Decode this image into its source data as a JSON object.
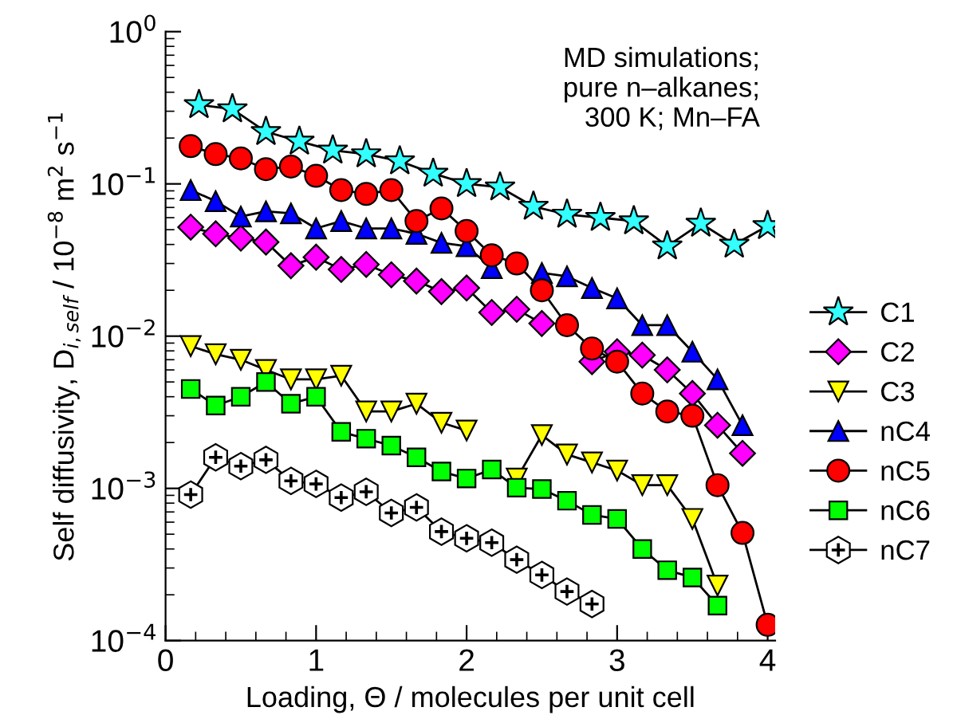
{
  "chart_data": {
    "type": "line",
    "xlabel": "Loading, Θ / molecules per unit cell",
    "ylabel": "Self diffusivity, D$_{i,self}$ / 10$^{−8}$ m$^{2}$ s$^{−1}$",
    "annotations": [
      "MD simulations;\npure n–alkanes;\n300 K; Mn–FA"
    ],
    "log": "y",
    "grid": false,
    "legend": "right",
    "xlim": [
      0,
      4.05
    ],
    "xticks": [
      0,
      1,
      2,
      3,
      4
    ],
    "ylim": [
      0.0001,
      1
    ],
    "yticks": [
      {
        "value": 0.0001,
        "label": "10$^{−4}$"
      },
      {
        "value": 0.001,
        "label": "10$^{−3}$"
      },
      {
        "value": 0.01,
        "label": "10$^{−2}$"
      },
      {
        "value": 0.1,
        "label": "10$^{−1}$"
      },
      {
        "value": 1,
        "label": "10$^{0}$"
      }
    ],
    "series": [
      {
        "name": "C1",
        "color": "#33ffff",
        "marker": "star",
        "x": [
          0.222,
          0.444,
          0.667,
          0.889,
          1.111,
          1.333,
          1.556,
          1.778,
          2.0,
          2.222,
          2.444,
          2.667,
          2.889,
          3.111,
          3.333,
          3.556,
          3.778,
          4.0
        ],
        "values": [
          0.33,
          0.31,
          0.22,
          0.19,
          0.166,
          0.157,
          0.141,
          0.117,
          0.1,
          0.095,
          0.071,
          0.063,
          0.06,
          0.057,
          0.039,
          0.055,
          0.04,
          0.053
        ]
      },
      {
        "name": "C2",
        "color": "#ff00ff",
        "marker": "diamond",
        "x": [
          0.167,
          0.333,
          0.5,
          0.667,
          0.833,
          1.0,
          1.167,
          1.333,
          1.5,
          1.667,
          1.833,
          2.0,
          2.167,
          2.333,
          2.5,
          2.667,
          2.833,
          3.0,
          3.167,
          3.333,
          3.5,
          3.667,
          3.833
        ],
        "values": [
          0.052,
          0.047,
          0.044,
          0.0415,
          0.029,
          0.033,
          0.0274,
          0.0296,
          0.0253,
          0.023,
          0.0196,
          0.0207,
          0.0143,
          0.015,
          0.0121,
          null,
          0.0068,
          0.0079,
          0.0075,
          0.006,
          0.0042,
          0.0026,
          0.0017
        ]
      },
      {
        "name": "C3",
        "color": "#ffff00",
        "marker": "triangle_down",
        "x": [
          0.167,
          0.333,
          0.5,
          0.667,
          0.833,
          1.0,
          1.167,
          1.333,
          1.5,
          1.667,
          1.833,
          2.0,
          2.167,
          2.333,
          2.5,
          2.667,
          2.833,
          3.0,
          3.167,
          3.333,
          3.5,
          3.667
        ],
        "values": [
          0.0086,
          0.0076,
          0.007,
          0.006,
          0.0052,
          0.0052,
          0.0055,
          0.0032,
          0.0032,
          0.0036,
          0.0027,
          0.0024,
          null,
          0.00116,
          0.00224,
          0.00167,
          0.00148,
          0.00131,
          0.00105,
          0.00105,
          0.00063,
          0.00023
        ]
      },
      {
        "name": "nC4",
        "color": "#0000ff",
        "marker": "triangle",
        "x": [
          0.167,
          0.333,
          0.5,
          0.667,
          0.833,
          1.0,
          1.167,
          1.333,
          1.5,
          1.667,
          1.833,
          2.0,
          2.167,
          2.333,
          2.5,
          2.667,
          2.833,
          3.0,
          3.167,
          3.333,
          3.5,
          3.667,
          3.833
        ],
        "values": [
          0.091,
          0.077,
          0.061,
          0.066,
          0.064,
          0.051,
          0.057,
          0.051,
          0.051,
          0.047,
          0.041,
          0.039,
          0.028,
          null,
          0.026,
          0.0247,
          0.0207,
          0.0177,
          0.0118,
          0.0118,
          0.0079,
          0.0052,
          0.0026
        ]
      },
      {
        "name": "nC5",
        "color": "#ff0000",
        "marker": "circle",
        "x": [
          0.167,
          0.333,
          0.5,
          0.667,
          0.833,
          1.0,
          1.167,
          1.333,
          1.5,
          1.667,
          1.833,
          2.0,
          2.167,
          2.333,
          2.5,
          2.667,
          2.833,
          3.0,
          3.167,
          3.333,
          3.5,
          3.667,
          3.833,
          4.0
        ],
        "values": [
          0.177,
          0.157,
          0.147,
          0.125,
          0.13,
          0.113,
          0.091,
          0.086,
          0.091,
          0.057,
          0.069,
          0.049,
          0.034,
          0.03,
          0.02,
          0.0118,
          0.0083,
          0.0068,
          0.0042,
          0.0032,
          0.003,
          0.00105,
          0.00051,
          0.000127
        ]
      },
      {
        "name": "nC6",
        "color": "#00ff00",
        "marker": "square",
        "x": [
          0.167,
          0.333,
          0.5,
          0.667,
          0.833,
          1.0,
          1.167,
          1.333,
          1.5,
          1.667,
          1.833,
          2.0,
          2.167,
          2.333,
          2.5,
          2.667,
          2.833,
          3.0,
          3.167,
          3.333,
          3.5,
          3.667
        ],
        "values": [
          0.0045,
          0.0035,
          0.004,
          0.005,
          0.0036,
          0.004,
          0.00235,
          0.00212,
          0.00191,
          0.0016,
          0.00129,
          0.00116,
          0.00133,
          0.00101,
          0.00099,
          0.00083,
          0.00067,
          0.00063,
          0.0004,
          0.00029,
          0.00026,
          0.00017
        ]
      },
      {
        "name": "nC7",
        "color": "#ffffff",
        "marker": "cross",
        "x": [
          0.167,
          0.333,
          0.5,
          0.667,
          0.833,
          1.0,
          1.167,
          1.333,
          1.5,
          1.667,
          1.833,
          2.0,
          2.167,
          2.333,
          2.5,
          2.667,
          2.833
        ],
        "values": [
          0.00091,
          0.0016,
          0.0014,
          0.00154,
          0.00112,
          0.00107,
          0.00087,
          0.00095,
          0.00069,
          0.00075,
          0.00052,
          0.00047,
          0.00044,
          0.00034,
          0.00027,
          0.00021,
          0.000174
        ]
      }
    ]
  }
}
